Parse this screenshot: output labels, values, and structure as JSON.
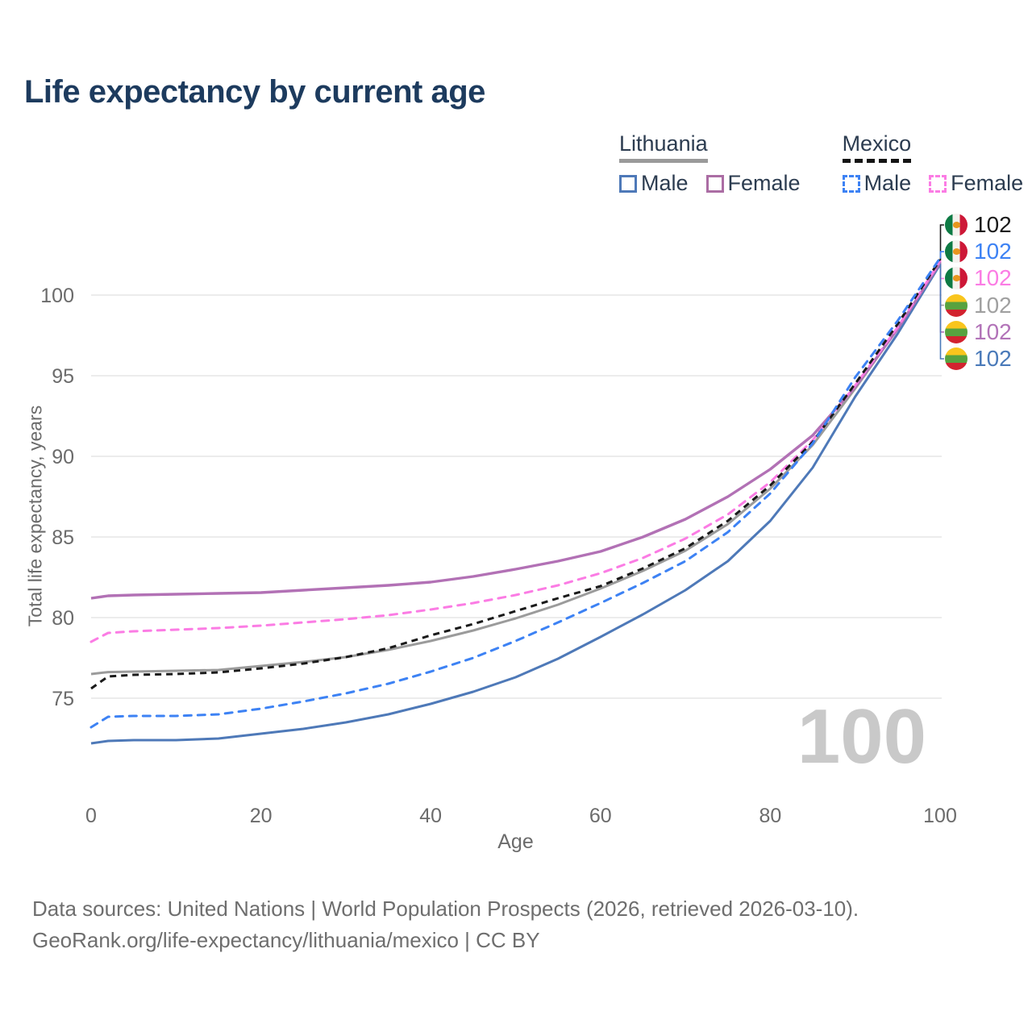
{
  "title": "Life expectancy by current age",
  "legend": {
    "groups": [
      {
        "country": "Lithuania",
        "line_style": "solid",
        "items": [
          {
            "label": "Male"
          },
          {
            "label": "Female"
          }
        ]
      },
      {
        "country": "Mexico",
        "line_style": "dashed",
        "items": [
          {
            "label": "Male"
          },
          {
            "label": "Female"
          }
        ]
      }
    ]
  },
  "watermark": "100",
  "footer": {
    "line1": "Data sources: United Nations | World Population Prospects (2026, retrieved 2026-03-10).",
    "line2": "GeoRank.org/life-expectancy/lithuania/mexico | CC BY"
  },
  "colors": {
    "title": "#1d3b5e",
    "axis_text": "#6b6b6b",
    "gridline": "#e6e6e6",
    "watermark": "#c9c9c9"
  },
  "chart_data": {
    "type": "line",
    "title": "Life expectancy by current age",
    "xlabel": "Age",
    "ylabel": "Total life expectancy, years",
    "x_ticks": [
      0,
      20,
      40,
      60,
      80,
      100
    ],
    "y_ticks": [
      75,
      80,
      85,
      90,
      95,
      100
    ],
    "xlim": [
      0,
      100
    ],
    "ylim": [
      71.5,
      103.5
    ],
    "grid": "horizontal-only",
    "legend_position": "top-right",
    "ages": [
      0,
      2,
      5,
      10,
      15,
      20,
      25,
      30,
      35,
      40,
      45,
      50,
      55,
      60,
      65,
      70,
      75,
      80,
      85,
      90,
      95,
      100
    ],
    "series": [
      {
        "id": "lt_male",
        "name": "Lithuania Male",
        "country": "Lithuania",
        "sex": "male",
        "color": "#4e79b8",
        "dash": "solid",
        "values": [
          72.2,
          72.35,
          72.4,
          72.4,
          72.5,
          72.8,
          73.1,
          73.5,
          74.0,
          74.65,
          75.4,
          76.3,
          77.45,
          78.8,
          80.2,
          81.7,
          83.5,
          86.0,
          89.3,
          93.7,
          97.6,
          101.9
        ],
        "end_label": "102"
      },
      {
        "id": "lt_total",
        "name": "Lithuania Total",
        "country": "Lithuania",
        "sex": "both",
        "color": "#9b9b9b",
        "dash": "solid",
        "values": [
          76.5,
          76.62,
          76.65,
          76.7,
          76.75,
          77.0,
          77.25,
          77.55,
          78.0,
          78.55,
          79.2,
          79.95,
          80.8,
          81.8,
          82.9,
          84.15,
          85.8,
          88.0,
          90.7,
          94.2,
          97.9,
          102.0
        ],
        "end_label": "102"
      },
      {
        "id": "lt_female",
        "name": "Lithuania Female",
        "country": "Lithuania",
        "sex": "female",
        "color": "#b271b5",
        "dash": "solid",
        "values": [
          81.2,
          81.35,
          81.4,
          81.45,
          81.5,
          81.55,
          81.7,
          81.85,
          82.0,
          82.2,
          82.55,
          83.0,
          83.5,
          84.1,
          85.0,
          86.1,
          87.5,
          89.2,
          91.3,
          94.3,
          97.9,
          102.0
        ],
        "end_label": "102"
      },
      {
        "id": "mx_female",
        "name": "Mexico Female",
        "country": "Mexico",
        "sex": "female",
        "color": "#fb7ce4",
        "dash": "dashed",
        "values": [
          78.5,
          79.05,
          79.15,
          79.25,
          79.35,
          79.5,
          79.7,
          79.9,
          80.15,
          80.5,
          80.9,
          81.4,
          82.0,
          82.75,
          83.7,
          84.9,
          86.4,
          88.4,
          91.0,
          94.4,
          98.0,
          102.1
        ],
        "end_label": "102"
      },
      {
        "id": "mx_total",
        "name": "Mexico Total",
        "country": "Mexico",
        "sex": "both",
        "color": "#1a1a1a",
        "dash": "dashed",
        "values": [
          75.6,
          76.35,
          76.45,
          76.5,
          76.6,
          76.85,
          77.15,
          77.55,
          78.1,
          78.9,
          79.6,
          80.4,
          81.2,
          81.95,
          83.05,
          84.3,
          86.0,
          88.2,
          90.9,
          94.5,
          98.2,
          102.2
        ],
        "end_label": "102"
      },
      {
        "id": "mx_male",
        "name": "Mexico Male",
        "country": "Mexico",
        "sex": "male",
        "color": "#3d82f4",
        "dash": "dashed",
        "values": [
          73.2,
          73.85,
          73.9,
          73.9,
          74.0,
          74.35,
          74.8,
          75.3,
          75.9,
          76.65,
          77.5,
          78.55,
          79.7,
          80.9,
          82.15,
          83.5,
          85.3,
          87.7,
          90.8,
          94.9,
          98.4,
          102.3
        ],
        "end_label": "102"
      }
    ],
    "end_rows": [
      {
        "series": "mx_total",
        "flag": "mx",
        "flag_name": "mexico-flag-icon",
        "value": "102",
        "color": "#1a1a1a"
      },
      {
        "series": "mx_male",
        "flag": "mx",
        "flag_name": "mexico-flag-icon",
        "value": "102",
        "color": "#3d82f4"
      },
      {
        "series": "mx_female",
        "flag": "mx",
        "flag_name": "mexico-flag-icon",
        "value": "102",
        "color": "#fb7ce4"
      },
      {
        "series": "lt_total",
        "flag": "lt",
        "flag_name": "lithuania-flag-icon",
        "value": "102",
        "color": "#a0a0a0"
      },
      {
        "series": "lt_female",
        "flag": "lt",
        "flag_name": "lithuania-flag-icon",
        "value": "102",
        "color": "#b273b8"
      },
      {
        "series": "lt_male",
        "flag": "lt",
        "flag_name": "lithuania-flag-icon",
        "value": "102",
        "color": "#4a7ab9"
      }
    ]
  }
}
